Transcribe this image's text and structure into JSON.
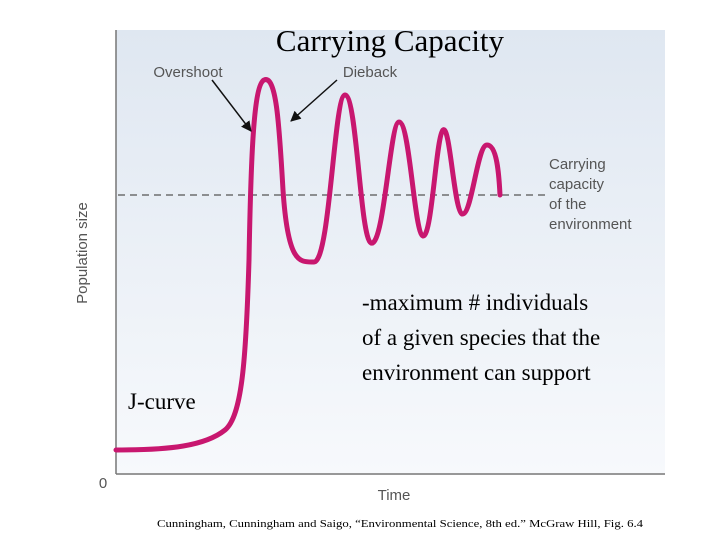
{
  "title": "Carrying Capacity",
  "annotations": {
    "overshoot": "Overshoot",
    "dieback": "Dieback",
    "carrying_capacity_lines": [
      "Carrying",
      "capacity",
      "of the",
      "environment"
    ],
    "j_curve": "J-curve"
  },
  "definition_lines": [
    "-maximum # individuals",
    "of a given species that the",
    "environment can support"
  ],
  "axes": {
    "y_label": "Population size",
    "x_label": "Time",
    "origin_label": "0"
  },
  "citation": "Cunningham, Cunningham and Saigo, “Environmental Science, 8th ed.” McGraw Hill, Fig. 6.4",
  "colors": {
    "curve": "#c8176f",
    "plot_bg_top": "#dfe7f1",
    "plot_bg_bottom": "#f7f9fc",
    "axis": "#777777",
    "dashed_line": "#555555",
    "label_text": "#555555",
    "title_text": "#000000"
  }
}
